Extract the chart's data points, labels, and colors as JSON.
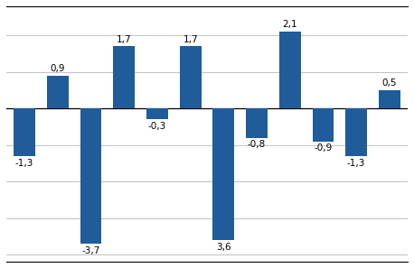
{
  "values": [
    -1.3,
    0.9,
    -3.7,
    1.7,
    -0.3,
    1.7,
    -3.6,
    -0.8,
    2.1,
    -0.9,
    -1.3,
    0.5
  ],
  "bar_color": "#1F5C99",
  "background_color": "#ffffff",
  "outer_background": "#000000",
  "ylim": [
    -4.2,
    2.8
  ],
  "ytick_positions": [
    -4,
    -3,
    -2,
    -1,
    0,
    1,
    2
  ],
  "grid_color": "#c0c0c0",
  "label_fontsize": 7.5,
  "bar_width": 0.65
}
